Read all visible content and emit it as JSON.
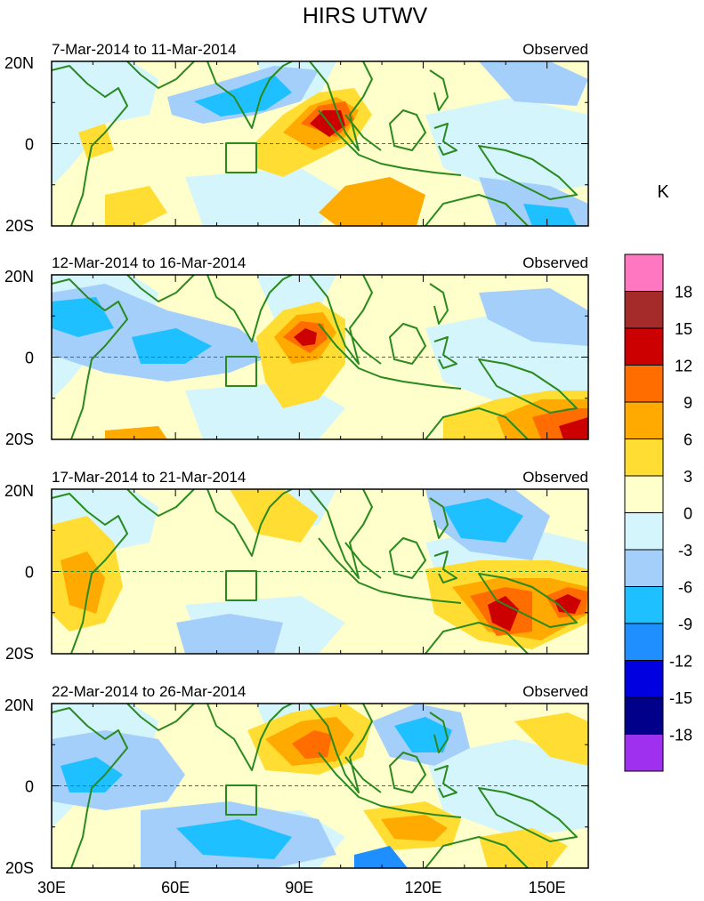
{
  "title": "HIRS UTWV",
  "unit_label": "K",
  "panels": [
    {
      "date_range": "7-Mar-2014 to 11-Mar-2014",
      "tag": "Observed"
    },
    {
      "date_range": "12-Mar-2014 to 16-Mar-2014",
      "tag": "Observed"
    },
    {
      "date_range": "17-Mar-2014 to 21-Mar-2014",
      "tag": "Observed"
    },
    {
      "date_range": "22-Mar-2014 to 26-Mar-2014",
      "tag": "Observed"
    }
  ],
  "lat_ticks": [
    "20N",
    "0",
    "20S"
  ],
  "lon_ticks": [
    "30E",
    "60E",
    "90E",
    "120E",
    "150E"
  ],
  "colorbar": {
    "labels": [
      "18",
      "15",
      "12",
      "9",
      "6",
      "3",
      "0",
      "-3",
      "-6",
      "-9",
      "-12",
      "-15",
      "-18"
    ],
    "colors": [
      "#ff77c1",
      "#a52a2a",
      "#cc0000",
      "#ff6d00",
      "#ffaa00",
      "#ffdd33",
      "#ffffcc",
      "#d4f5fb",
      "#a3cffa",
      "#1ec0ff",
      "#1f8fff",
      "#0000e0",
      "#00008b",
      "#a030f0"
    ]
  },
  "colors": {
    "coast": "#2a8a20",
    "background": "#ffffcc"
  }
}
